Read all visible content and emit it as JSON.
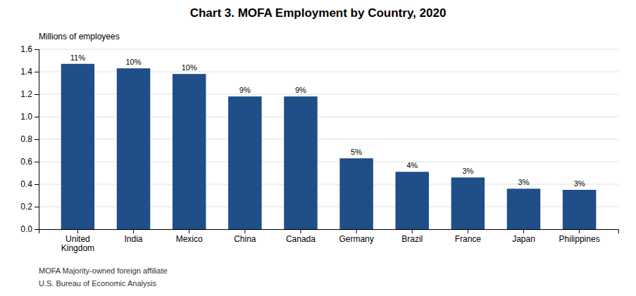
{
  "chart_data": {
    "type": "bar",
    "title": "Chart 3. MOFA Employment by Country, 2020",
    "ylabel": "Millions of employees",
    "categories": [
      "United\nKingdom",
      "India",
      "Mexico",
      "China",
      "Canada",
      "Germany",
      "Brazil",
      "France",
      "Japan",
      "Philippines"
    ],
    "values": [
      1.47,
      1.43,
      1.38,
      1.18,
      1.18,
      0.63,
      0.51,
      0.46,
      0.36,
      0.35
    ],
    "percentages": [
      "11%",
      "10%",
      "10%",
      "9%",
      "9%",
      "5%",
      "4%",
      "3%",
      "3%",
      "3%"
    ],
    "color": "#1F4E89",
    "ylim": [
      0,
      1.6
    ],
    "yticks": [
      {
        "value": 0,
        "label": "0.0"
      },
      0.2,
      0.4,
      0.6,
      0.8,
      {
        "value": 1,
        "label": "1.0"
      },
      1.2,
      1.4,
      1.6
    ],
    "grid": true,
    "footnotes": [
      "MOFA   Majority-owned foreign affiliate",
      "U.S. Bureau of Economic Analysis"
    ]
  }
}
